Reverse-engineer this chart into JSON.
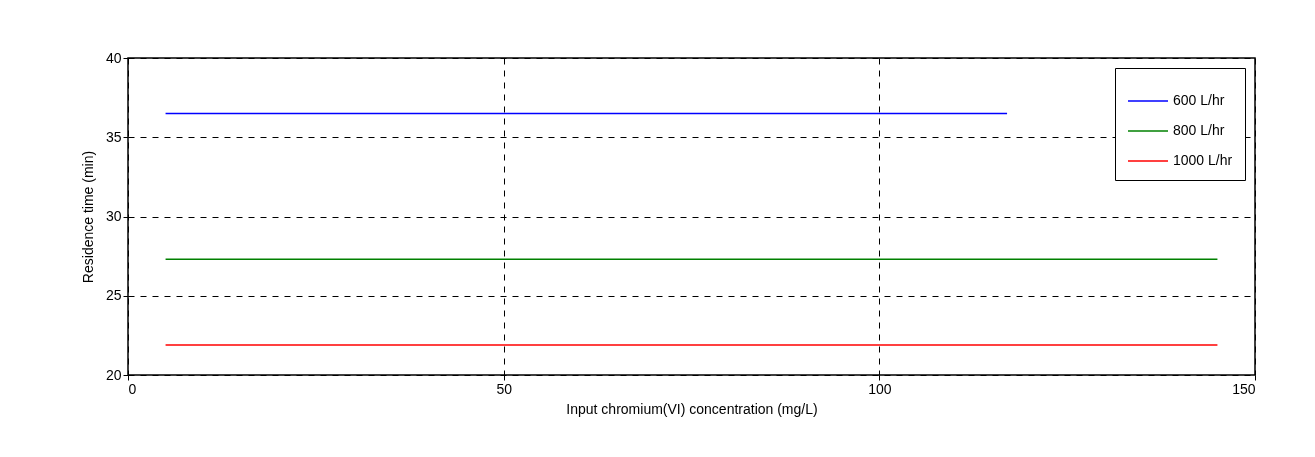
{
  "chart_data": {
    "type": "line",
    "xlabel": "Input chromium(VI) concentration (mg/L)",
    "ylabel": "Residence time (min)",
    "x": [
      5,
      145
    ],
    "series": [
      {
        "name": "600 L/hr",
        "color": "#0000ff",
        "x": [
          5,
          117
        ],
        "values": [
          36.5,
          36.5
        ]
      },
      {
        "name": "800 L/hr",
        "color": "#008000",
        "values": [
          27.3,
          27.3
        ]
      },
      {
        "name": "1000 L/hr",
        "color": "#ff0000",
        "values": [
          21.9,
          21.9
        ]
      }
    ],
    "xlim": [
      0,
      150
    ],
    "xticks": [
      0,
      50,
      100,
      150
    ],
    "ylim": [
      20,
      40
    ],
    "yticks": [
      20,
      25,
      30,
      35,
      40
    ],
    "grid": true,
    "legend": "top right"
  }
}
